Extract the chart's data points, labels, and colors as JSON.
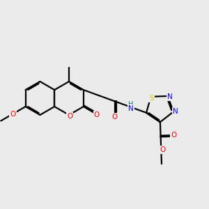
{
  "bg": "#EBEBEB",
  "C": "#000000",
  "N": "#0000FF",
  "O": "#FF0000",
  "S": "#CCCC00",
  "H_color": "#008080",
  "lw": 1.6,
  "doff": 0.055,
  "fsize": 7.5
}
